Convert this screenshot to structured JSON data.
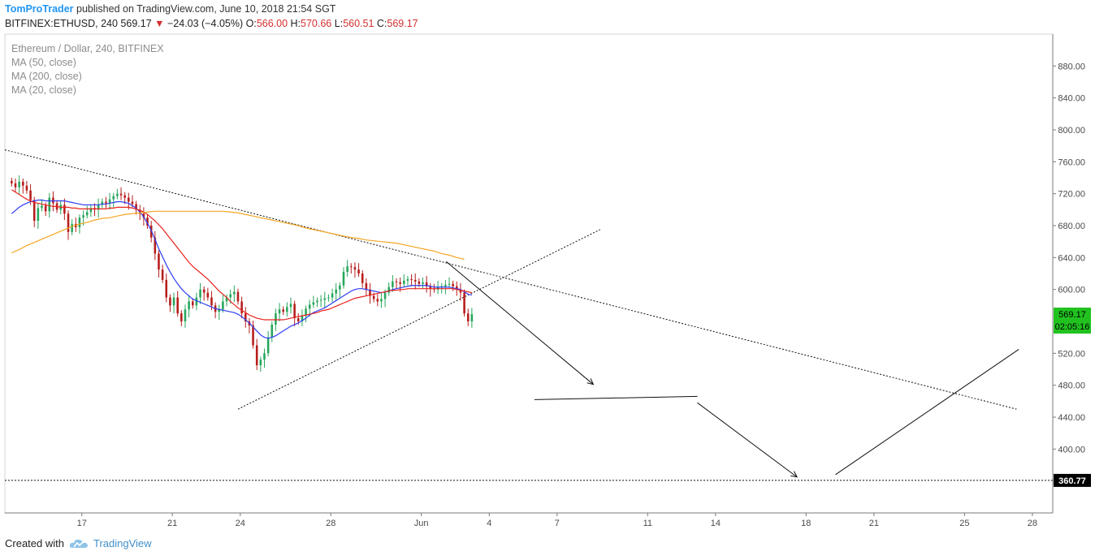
{
  "header": {
    "author": "TomProTrader",
    "published_text": "published on TradingView.com, June 10, 2018 21:54 SGT",
    "symbol": "BITFINEX:ETHUSD, 240",
    "last": "569.17",
    "change_arrow": "▼",
    "change": "−24.03 (−4.05%)",
    "o_label": "O:",
    "o_value": "566.00",
    "h_label": "H:",
    "h_value": "570.66",
    "l_label": "L:",
    "l_value": "560.51",
    "c_label": "C:",
    "c_value": "569.17"
  },
  "legend": {
    "title": "Ethereum / Dollar, 240, BITFINEX",
    "ma50": "MA (50, close)",
    "ma200": "MA (200, close)",
    "ma20": "MA (20, close)"
  },
  "footer": {
    "created_with": "Created with",
    "brand": "TradingView",
    "logo_icon": "tradingview-cloud-icon"
  },
  "colors": {
    "up": "#26a65b",
    "down": "#b71c1c",
    "ma20": "#2f3df5",
    "ma50": "#e8231d",
    "ma200": "#f5a623",
    "last_price_bg": "#21c21f",
    "level_bg": "#000000",
    "author": "#2196f3"
  },
  "chart_data": {
    "type": "candlestick",
    "ylim": [
      320,
      920
    ],
    "y_ticks": [
      880,
      840,
      800,
      760,
      720,
      680,
      640,
      600,
      520,
      480,
      440,
      400
    ],
    "y_tick_labels": [
      "880.00",
      "840.00",
      "800.00",
      "760.00",
      "720.00",
      "680.00",
      "640.00",
      "600.00",
      "520.00",
      "480.00",
      "440.00",
      "400.00"
    ],
    "x_range_days": [
      13.6,
      28.9
    ],
    "x_ticks": [
      {
        "label": "17",
        "d": 17
      },
      {
        "label": "21",
        "d": 21
      },
      {
        "label": "24",
        "d": 24
      },
      {
        "label": "28",
        "d": 28
      },
      {
        "label": "Jun",
        "d": 32
      },
      {
        "label": "4",
        "d": 35
      },
      {
        "label": "7",
        "d": 38
      },
      {
        "label": "11",
        "d": 42
      },
      {
        "label": "14",
        "d": 45
      },
      {
        "label": "18",
        "d": 49
      },
      {
        "label": "21",
        "d": 52
      },
      {
        "label": "25",
        "d": 56
      },
      {
        "label": "28",
        "d": 59
      }
    ],
    "last_price": {
      "value": 569.17,
      "label": "569.17",
      "countdown": "02:05:16"
    },
    "level_line": {
      "value": 360.77,
      "label": "360.77"
    },
    "candles_start_day": 13.9,
    "candles_per_day": 6,
    "closes": [
      733,
      728,
      735,
      730,
      724,
      712,
      686,
      702,
      705,
      698,
      715,
      708,
      700,
      706,
      695,
      672,
      682,
      678,
      690,
      693,
      697,
      702,
      700,
      706,
      710,
      708,
      713,
      717,
      720,
      718,
      715,
      710,
      707,
      700,
      695,
      690,
      680,
      665,
      645,
      625,
      612,
      590,
      580,
      590,
      570,
      560,
      575,
      585,
      580,
      590,
      600,
      596,
      590,
      580,
      572,
      575,
      585,
      590,
      594,
      597,
      585,
      570,
      560,
      555,
      530,
      505,
      512,
      520,
      540,
      556,
      570,
      575,
      572,
      578,
      582,
      564,
      560,
      567,
      576,
      581,
      584,
      586,
      587,
      589,
      590,
      595,
      600,
      605,
      622,
      629,
      628,
      625,
      620,
      608,
      600,
      592,
      588,
      585,
      588,
      596,
      603,
      610,
      609,
      607,
      611,
      613,
      612,
      610,
      607,
      609,
      604,
      601,
      600,
      603,
      604,
      606,
      607,
      604,
      600,
      596,
      570,
      560,
      569
    ],
    "ma20": [
      695,
      699,
      703,
      706,
      708,
      710,
      711,
      712,
      712,
      711,
      711,
      711,
      711,
      711,
      711,
      710,
      709,
      708,
      707,
      706,
      706,
      706,
      706,
      706,
      707,
      707,
      708,
      709,
      710,
      710,
      709,
      708,
      705,
      702,
      697,
      691,
      683,
      674,
      663,
      651,
      641,
      631,
      622,
      614,
      607,
      601,
      596,
      592,
      588,
      586,
      584,
      582,
      580,
      578,
      576,
      575,
      574,
      573,
      572,
      571,
      569,
      566,
      562,
      558,
      553,
      548,
      543,
      540,
      539,
      540,
      542,
      545,
      548,
      551,
      554,
      556,
      558,
      561,
      564,
      568,
      571,
      573,
      575,
      577,
      580,
      583,
      586,
      589,
      592,
      595,
      598,
      600,
      601,
      601,
      600,
      599,
      598,
      597,
      596,
      597,
      598,
      600,
      601,
      602,
      603,
      604,
      605,
      605,
      605,
      605,
      605,
      604,
      603,
      603,
      603,
      603,
      603,
      602,
      601,
      600,
      597,
      594,
      593
    ],
    "ma50": [
      725,
      722,
      719,
      716,
      713,
      711,
      709,
      708,
      707,
      706,
      705,
      704,
      704,
      703,
      703,
      703,
      702,
      702,
      701,
      701,
      701,
      701,
      701,
      701,
      701,
      701,
      702,
      702,
      703,
      703,
      703,
      703,
      702,
      701,
      699,
      697,
      694,
      690,
      686,
      681,
      676,
      670,
      664,
      658,
      652,
      646,
      640,
      634,
      629,
      625,
      621,
      617,
      613,
      608,
      603,
      598,
      594,
      590,
      585,
      581,
      577,
      574,
      571,
      568,
      566,
      564,
      563,
      562,
      562,
      562,
      562,
      562,
      562,
      563,
      564,
      565,
      566,
      567,
      568,
      569,
      570,
      571,
      573,
      574,
      575,
      577,
      579,
      581,
      583,
      585,
      587,
      589,
      590,
      591,
      592,
      593,
      594,
      595,
      596,
      597,
      598,
      599,
      599,
      600,
      600,
      601,
      601,
      601,
      601,
      601,
      601,
      601,
      601,
      601,
      601,
      601,
      601,
      601,
      600,
      599,
      598,
      597,
      596
    ],
    "ma200": [
      646,
      650,
      655,
      659,
      663,
      667,
      671,
      675,
      679,
      682,
      684,
      687,
      689,
      690,
      692,
      694,
      695,
      696,
      697,
      698,
      698,
      698,
      698,
      698,
      698,
      698,
      698,
      698,
      698,
      697,
      696,
      694,
      692,
      690,
      688,
      686,
      684,
      682,
      680,
      677,
      675,
      673,
      671,
      669,
      667,
      665,
      664,
      662,
      661,
      660,
      659,
      658,
      656,
      654,
      652,
      650,
      648,
      645,
      643,
      640,
      638
    ]
  },
  "annotations": {
    "resistance_trendline": {
      "start": {
        "d": 13.6,
        "p": 775
      },
      "end": {
        "d": 58.3,
        "p": 450
      }
    },
    "support_trendline": {
      "start": {
        "d": 23.9,
        "p": 450
      },
      "end": {
        "d": 39.9,
        "p": 675
      }
    },
    "arrow1": {
      "start": {
        "d": 33.1,
        "p": 635
      },
      "end": {
        "d": 39.6,
        "p": 481
      }
    },
    "flat_line": {
      "start": {
        "d": 37.0,
        "p": 462
      },
      "end": {
        "d": 44.2,
        "p": 466
      }
    },
    "arrow2": {
      "start": {
        "d": 44.2,
        "p": 458
      },
      "end": {
        "d": 48.6,
        "p": 365
      }
    },
    "rise_line": {
      "start": {
        "d": 50.3,
        "p": 368
      },
      "end": {
        "d": 58.4,
        "p": 525
      }
    }
  }
}
